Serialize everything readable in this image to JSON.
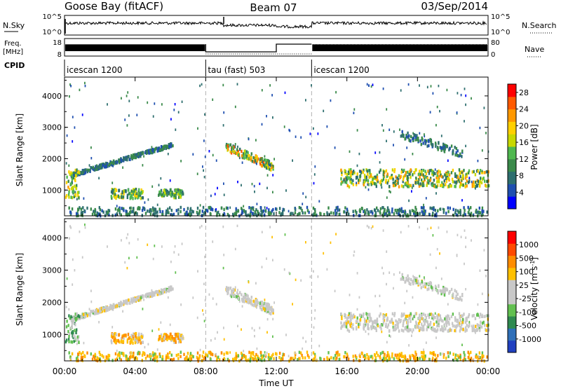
{
  "header": {
    "station": "Goose Bay (fitACF)",
    "beam": "Beam 07",
    "date": "03/Sep/2014"
  },
  "status_panels": {
    "nsky_label": "N.Sky",
    "nsky_ticks": [
      "10^5",
      "10^0"
    ],
    "nsearch_label": "N.Search",
    "nsearch_ticks": [
      "10^5",
      "10^0"
    ],
    "freq_label": "Freq.",
    "freq_unit": "[MHz]",
    "freq_ticks": [
      "18",
      "8"
    ],
    "nave_label": "Nave",
    "nave_ticks": [
      "80",
      "0"
    ],
    "cpid_label": "CPID",
    "modes": [
      {
        "label": "icescan 1200",
        "start_hour": 0,
        "end_hour": 8
      },
      {
        "label": "tau (fast) 503",
        "start_hour": 8,
        "end_hour": 14
      },
      {
        "label": "icescan 1200",
        "start_hour": 14,
        "end_hour": 24
      }
    ]
  },
  "chart_data": [
    {
      "type": "heatmap",
      "panel": "power",
      "ylabel": "Slant Range [km]",
      "ylim": [
        180,
        4600
      ],
      "yticks": [
        "1000",
        "2000",
        "3000",
        "4000"
      ],
      "xlim": [
        0,
        24
      ],
      "colorbar": {
        "label": "Power [dB]",
        "ticks": [
          "4",
          "8",
          "12",
          "16",
          "20",
          "24",
          "28"
        ],
        "range": [
          0,
          30
        ],
        "colors": [
          "#0000ff",
          "#1f4fb0",
          "#2e6f6f",
          "#3a8a4a",
          "#4fb84f",
          "#c8d800",
          "#ffd000",
          "#ff9800",
          "#ff5a00",
          "#ff0000"
        ]
      }
    },
    {
      "type": "heatmap",
      "panel": "velocity",
      "ylabel": "Slant Range [km]",
      "ylim": [
        180,
        4600
      ],
      "yticks": [
        "1000",
        "2000",
        "3000",
        "4000"
      ],
      "xlim": [
        0,
        24
      ],
      "xlabel": "Time UT",
      "xticks": [
        "00:00",
        "04:00",
        "08:00",
        "12:00",
        "16:00",
        "20:00",
        "00:00"
      ],
      "colorbar": {
        "label": "Velocity [m s^-1]",
        "ticks": [
          "1000",
          "500",
          "100",
          "25",
          "-25",
          "-100",
          "-500",
          "-1000"
        ],
        "colors": [
          "#2040c0",
          "#2f6fb8",
          "#2f8a50",
          "#62c050",
          "#c8c8c8",
          "#c8c8c8",
          "#ffc000",
          "#ff8c00",
          "#ff4a00",
          "#ff0000"
        ]
      }
    }
  ]
}
